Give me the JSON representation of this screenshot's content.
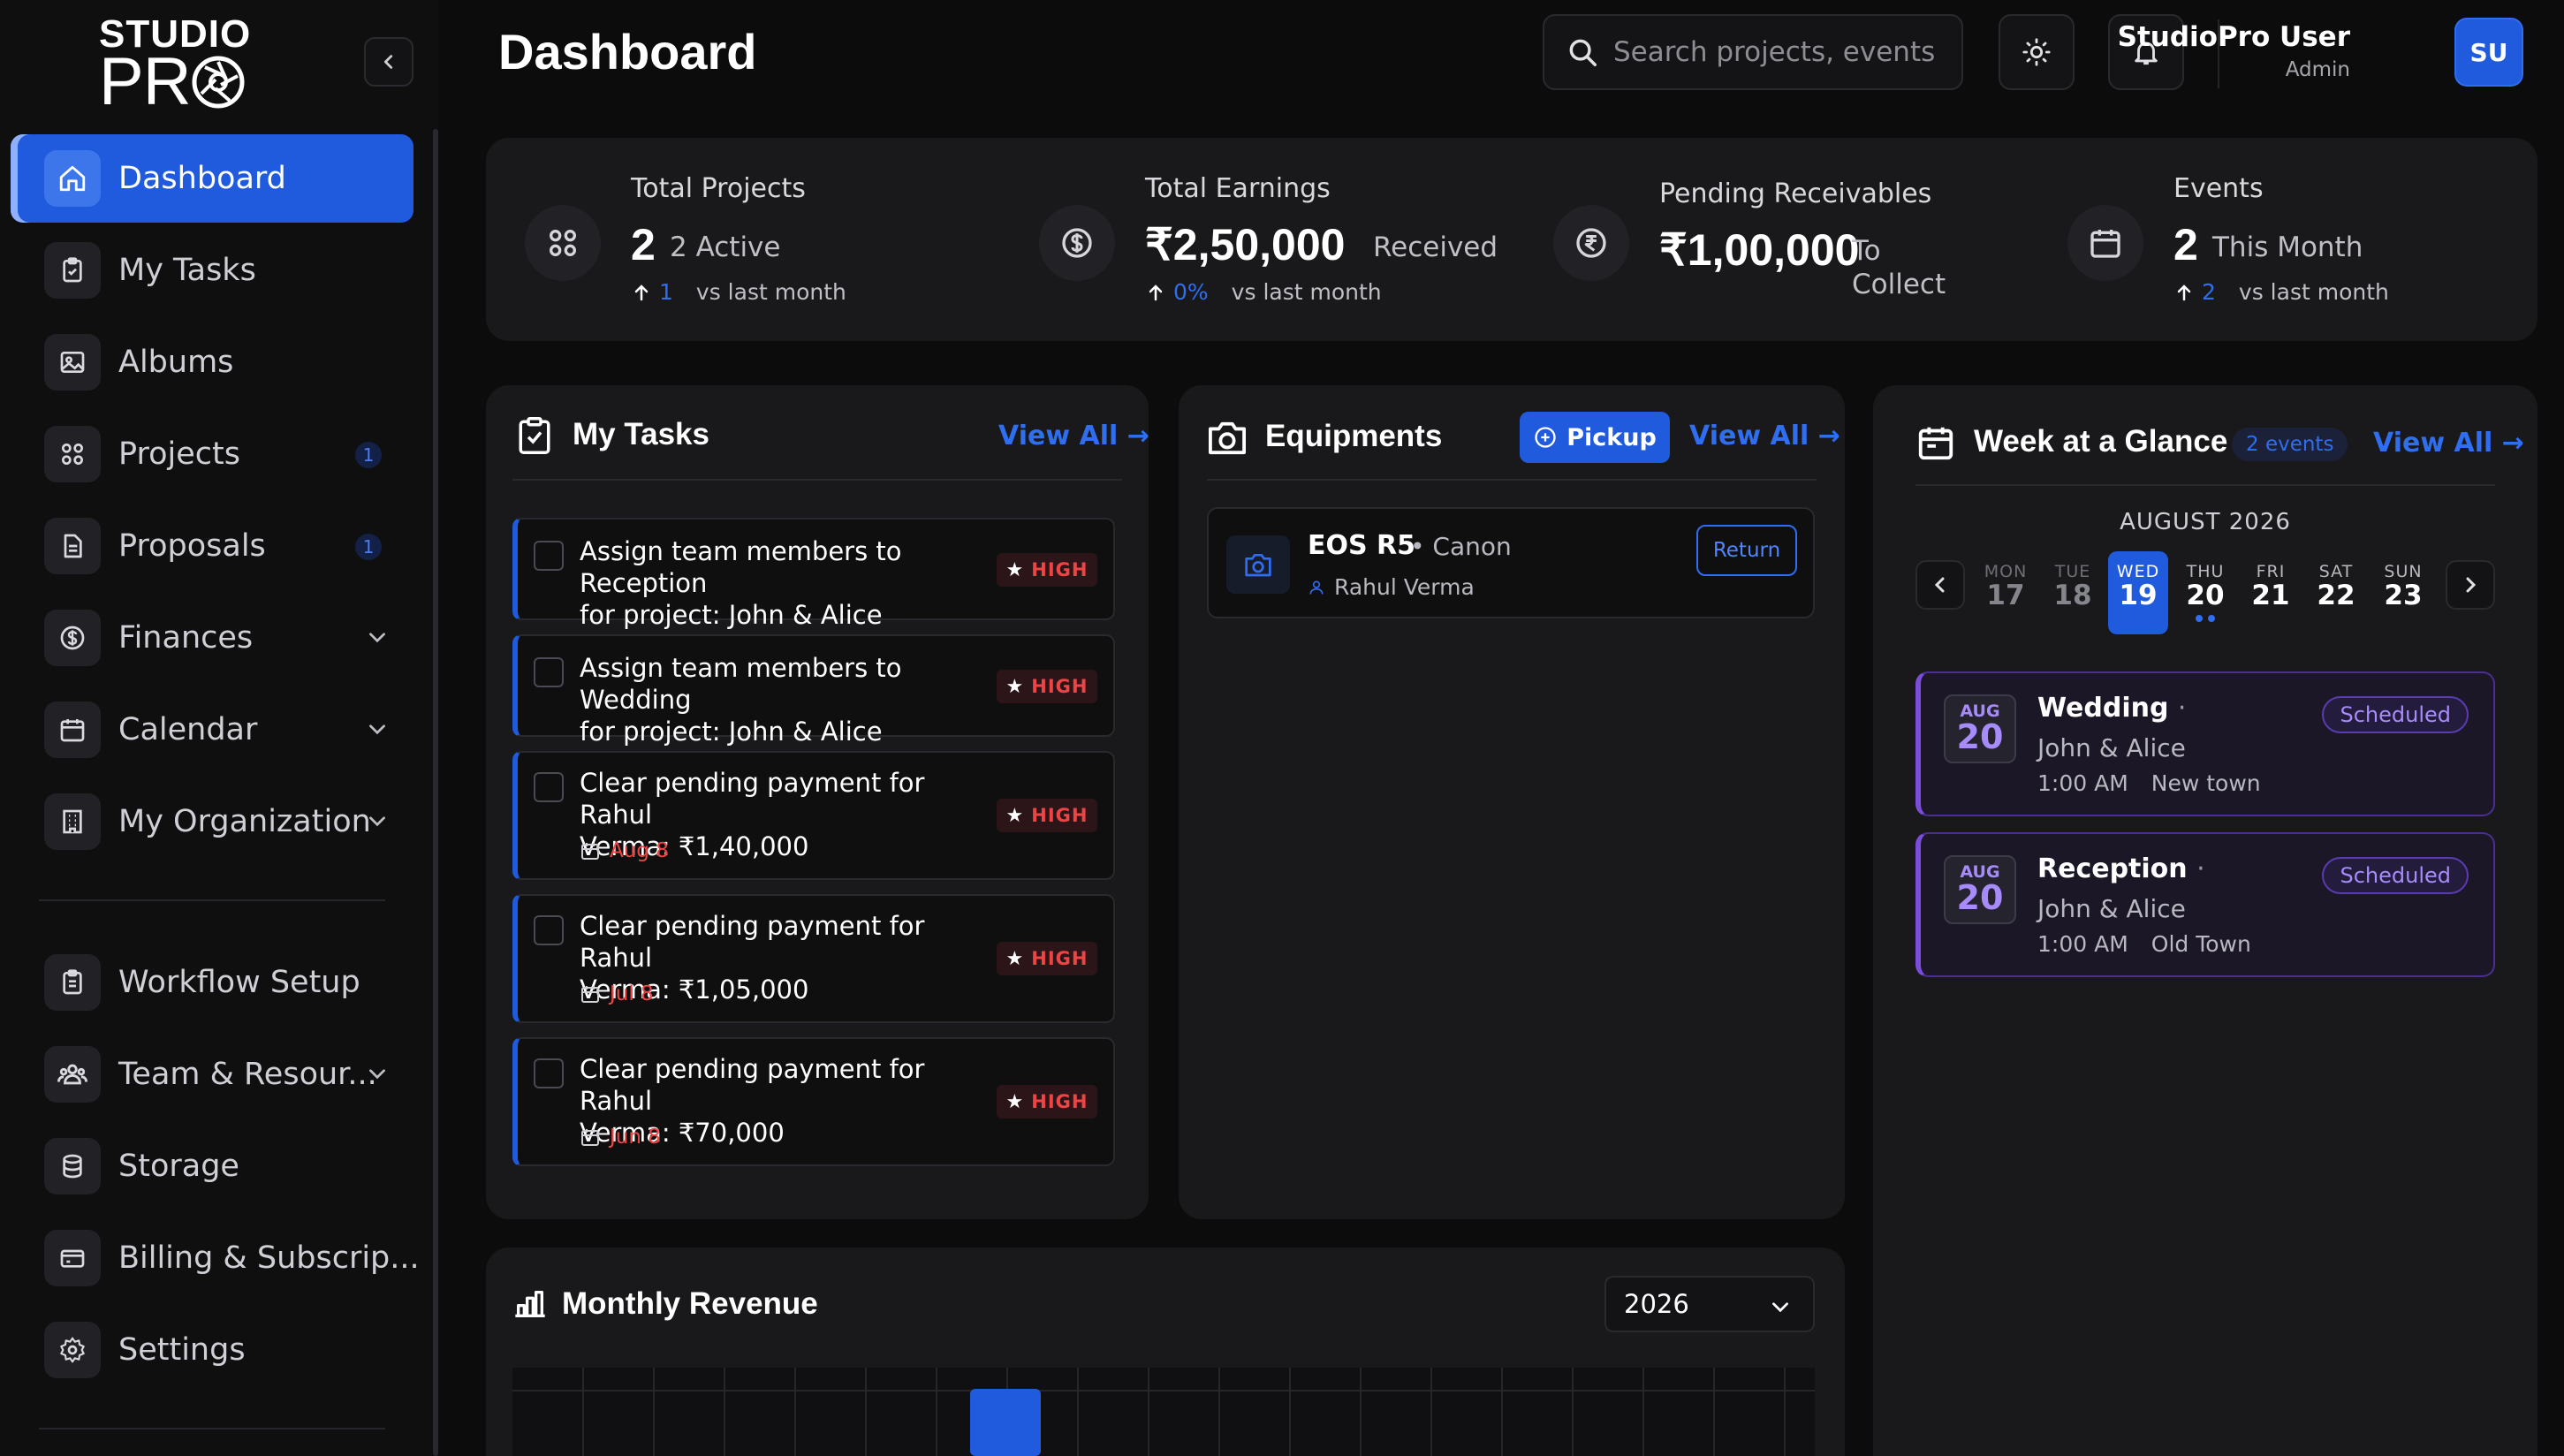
{
  "brand": {
    "line1": "STUDIO",
    "line2_pre": "PR"
  },
  "sidebar": {
    "items": [
      {
        "label": "Dashboard"
      },
      {
        "label": "My Tasks"
      },
      {
        "label": "Albums"
      },
      {
        "label": "Projects",
        "badge": "1"
      },
      {
        "label": "Proposals",
        "badge": "1"
      },
      {
        "label": "Finances"
      },
      {
        "label": "Calendar"
      },
      {
        "label": "My Organization"
      },
      {
        "label": "Workflow Setup"
      },
      {
        "label": "Team & Resour..."
      },
      {
        "label": "Storage"
      },
      {
        "label": "Billing & Subscrip..."
      },
      {
        "label": "Settings"
      }
    ]
  },
  "header": {
    "title": "Dashboard",
    "search_placeholder": "Search projects, events",
    "user_name": "StudioPro User",
    "user_role": "Admin",
    "avatar_initials": "SU"
  },
  "stats": {
    "projects": {
      "title": "Total Projects",
      "value": "2",
      "sub": "2 Active",
      "trend": "1",
      "trend_label": "vs last month"
    },
    "earnings": {
      "title": "Total Earnings",
      "value": "₹2,50,000",
      "sub": "Received",
      "trend": "0%",
      "trend_label": "vs last month"
    },
    "receivables": {
      "title": "Pending Receivables",
      "value": "₹1,00,000",
      "sub1": "To",
      "sub2": "Collect"
    },
    "events": {
      "title": "Events",
      "value": "2",
      "sub": "This Month",
      "trend": "2",
      "trend_label": "vs last month"
    }
  },
  "tasks": {
    "title": "My Tasks",
    "view_all": "View All →",
    "items": [
      {
        "line1": "Assign team members to Reception",
        "line2": "for project: John & Alice",
        "priority": "HIGH",
        "due": ""
      },
      {
        "line1": "Assign team members to Wedding",
        "line2": "for project: John & Alice",
        "priority": "HIGH",
        "due": ""
      },
      {
        "line1": "Clear pending payment for Rahul",
        "line2": "Verma: ₹1,40,000",
        "priority": "HIGH",
        "due": "Aug 8"
      },
      {
        "line1": "Clear pending payment for Rahul",
        "line2": "Verma: ₹1,05,000",
        "priority": "HIGH",
        "due": "Jul 8"
      },
      {
        "line1": "Clear pending payment for Rahul",
        "line2": "Verma: ₹70,000",
        "priority": "HIGH",
        "due": "Jun 8"
      }
    ]
  },
  "equipments": {
    "title": "Equipments",
    "pickup_label": "Pickup",
    "view_all": "View All →",
    "items": [
      {
        "name": "EOS R5",
        "brand": "Canon",
        "holder": "Rahul Verma",
        "action": "Return"
      }
    ]
  },
  "week": {
    "title": "Week at a Glance",
    "count": "2 events",
    "view_all": "View All →",
    "month": "AUGUST 2026",
    "days": [
      {
        "name": "MON",
        "num": "17"
      },
      {
        "name": "TUE",
        "num": "18"
      },
      {
        "name": "WED",
        "num": "19"
      },
      {
        "name": "THU",
        "num": "20"
      },
      {
        "name": "FRI",
        "num": "21"
      },
      {
        "name": "SAT",
        "num": "22"
      },
      {
        "name": "SUN",
        "num": "23"
      }
    ],
    "events": [
      {
        "month": "AUG",
        "day": "20",
        "title": "Wedding",
        "client": "John & Alice",
        "time": "1:00 AM",
        "location": "New town",
        "status": "Scheduled"
      },
      {
        "month": "AUG",
        "day": "20",
        "title": "Reception",
        "client": "John & Alice",
        "time": "1:00 AM",
        "location": "Old Town",
        "status": "Scheduled"
      }
    ]
  },
  "revenue": {
    "title": "Monthly Revenue",
    "year": "2026"
  },
  "colors": {
    "accent": "#1f5bdc",
    "danger": "#ef4444",
    "event": "#7c4ddb"
  }
}
